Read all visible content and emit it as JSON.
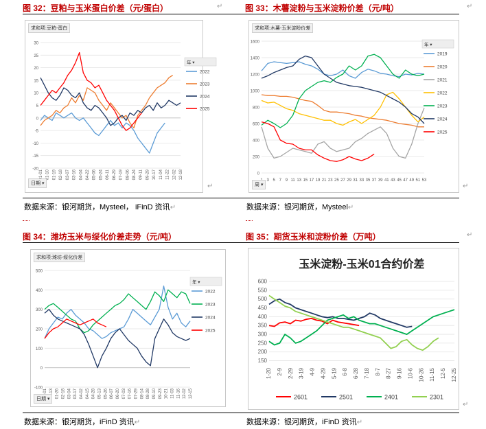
{
  "figures": [
    {
      "caption": "图 32：豆粕与玉米蛋白价差（元/蛋白）",
      "pivot_label": "求和项:豆粕-蛋白",
      "axis_button": "日期 ▾",
      "legend_title": "年",
      "source": "数据来源：银河期货，Mysteel， iFinD 资讯"
    },
    {
      "caption": "图 33：木薯淀粉与玉米淀粉价差（元/吨）",
      "pivot_label": "求和项:木薯-玉米淀粉价差",
      "axis_button": "周 ▾",
      "legend_title": "年",
      "source": "数据来源：银河期货，Mysteel"
    },
    {
      "caption": "图 34：潍坊玉米与绥化价差走势（元/吨）",
      "pivot_label": "求和项:潍坊-绥化价差",
      "axis_button": "日期 ▾",
      "legend_title": "年",
      "source": "数据来源：银河期货，iFinD 资讯"
    },
    {
      "caption": "图 35：期货玉米和淀粉价差（万吨）",
      "source": "数据来源：银河期货，iFinD 资讯"
    }
  ],
  "chart_data": [
    {
      "type": "line",
      "title": "豆粕与玉米蛋白价差（元/蛋白）",
      "ylim": [
        -20,
        30
      ],
      "yticks": [
        30,
        25,
        20,
        15,
        10,
        5,
        0,
        -5,
        -10,
        -15,
        -20
      ],
      "x_tick_labels": [
        "01-01",
        "01-10",
        "01-19",
        "02-18",
        "03-07",
        "03-16",
        "04-04",
        "04-22",
        "05-06",
        "05-24",
        "06-11",
        "06-29",
        "07-19",
        "08-06",
        "08-24",
        "09-11",
        "09-29",
        "10-17",
        "11-04",
        "11-22",
        "12-02",
        "12-18"
      ],
      "series": [
        {
          "name": "2022",
          "color": "#5b9bd5",
          "values": [
            -1,
            1,
            0,
            -1,
            2,
            1,
            0,
            1,
            2,
            0,
            -1,
            0,
            -2,
            -4,
            -6,
            -7,
            -5,
            -3,
            -1,
            -3,
            -2,
            -4,
            -2,
            -3,
            -5,
            -8,
            -10,
            -12,
            -14,
            -10,
            -6,
            -4,
            -2
          ]
        },
        {
          "name": "2023",
          "color": "#ed7d31",
          "values": [
            -3,
            -1,
            0,
            1,
            3,
            2,
            4,
            5,
            8,
            6,
            9,
            7,
            12,
            11,
            10,
            7,
            5,
            3,
            6,
            4,
            2,
            0,
            1,
            -2,
            -4,
            1,
            3,
            5,
            8,
            10,
            12,
            13,
            14,
            16,
            17
          ]
        },
        {
          "name": "2024",
          "color": "#203864",
          "values": [
            16,
            13,
            10,
            8,
            7,
            9,
            12,
            11,
            9,
            8,
            10,
            6,
            4,
            3,
            5,
            4,
            2,
            0,
            -3,
            -2,
            0,
            1,
            -1,
            2,
            1,
            3,
            2,
            4,
            5,
            3,
            6,
            4,
            5,
            7,
            6,
            5,
            6
          ]
        },
        {
          "name": "2025",
          "color": "#ff0000",
          "values": [
            5,
            7,
            9,
            11,
            10,
            12,
            14,
            17,
            19,
            22,
            26,
            18,
            15,
            14,
            12,
            13,
            10,
            7,
            5,
            3,
            0,
            -3,
            -5,
            -4,
            -2,
            0,
            2
          ]
        }
      ]
    },
    {
      "type": "line",
      "title": "木薯淀粉与玉米淀粉价差（元/吨）",
      "ylim": [
        0,
        1600
      ],
      "yticks": [
        1600,
        1400,
        1200,
        1000,
        800,
        600,
        400,
        200,
        0
      ],
      "x_tick_labels": [
        "1",
        "3",
        "5",
        "7",
        "9",
        "11",
        "13",
        "15",
        "17",
        "19",
        "21",
        "23",
        "25",
        "27",
        "29",
        "31",
        "33",
        "35",
        "37",
        "39",
        "41",
        "43",
        "45",
        "47",
        "49",
        "51",
        "53"
      ],
      "series": [
        {
          "name": "2019",
          "color": "#5b9bd5",
          "values": [
            1240,
            1330,
            1350,
            1340,
            1330,
            1340,
            1350,
            1320,
            1300,
            1260,
            1200,
            1180,
            1200,
            1250,
            1180,
            1150,
            1220,
            1260,
            1240,
            1210,
            1200,
            1180,
            1170,
            1200,
            1190,
            1210,
            1200
          ]
        },
        {
          "name": "2020",
          "color": "#ed7d31",
          "values": [
            950,
            940,
            940,
            930,
            930,
            920,
            900,
            880,
            870,
            820,
            760,
            740,
            740,
            730,
            720,
            700,
            690,
            670,
            660,
            650,
            640,
            620,
            600,
            590,
            580,
            560,
            560
          ]
        },
        {
          "name": "2021",
          "color": "#a5a5a5",
          "values": [
            560,
            300,
            180,
            200,
            250,
            300,
            280,
            260,
            240,
            350,
            380,
            300,
            260,
            280,
            300,
            380,
            420,
            480,
            520,
            560,
            480,
            300,
            200,
            180,
            350,
            600,
            790
          ]
        },
        {
          "name": "2022",
          "color": "#ffc000",
          "values": [
            880,
            850,
            860,
            820,
            780,
            760,
            720,
            700,
            680,
            660,
            640,
            640,
            600,
            580,
            620,
            650,
            600,
            650,
            700,
            800,
            950,
            980,
            900,
            800,
            700,
            620,
            680
          ]
        },
        {
          "name": "2023",
          "color": "#00b050",
          "values": [
            580,
            640,
            600,
            550,
            600,
            700,
            900,
            1000,
            1050,
            1100,
            1120,
            1100,
            1160,
            1200,
            1300,
            1250,
            1300,
            1420,
            1440,
            1400,
            1300,
            1200,
            1150,
            1250,
            1200,
            1180,
            1200
          ]
        },
        {
          "name": "2024",
          "color": "#203864",
          "values": [
            1150,
            1180,
            1220,
            1250,
            1280,
            1300,
            1380,
            1420,
            1400,
            1300,
            1200,
            1150,
            1100,
            1080,
            1060,
            1050,
            1040,
            1020,
            1000,
            980,
            940,
            900,
            860,
            800,
            720,
            680,
            600
          ]
        },
        {
          "name": "2025",
          "color": "#ff0000",
          "values": [
            620,
            600,
            560,
            400,
            360,
            350,
            300,
            280,
            280,
            220,
            180,
            150,
            140,
            160,
            200,
            170,
            150,
            180,
            230
          ]
        }
      ]
    },
    {
      "type": "line",
      "title": "潍坊玉米与绥化价差走势（元/吨）",
      "ylim": [
        -100,
        500
      ],
      "yticks": [
        500,
        400,
        300,
        200,
        100,
        0,
        -100
      ],
      "x_tick_labels": [
        "01-01",
        "01-13",
        "01-26",
        "02-18",
        "03-04",
        "03-17",
        "04-02",
        "04-15",
        "04-28",
        "05-13",
        "05-26",
        "06-07",
        "06-20",
        "07-03",
        "07-16",
        "07-29",
        "08-14",
        "08-28",
        "09-10",
        "09-23",
        "10-21",
        "11-03",
        "11-16",
        "12-02",
        "12-15"
      ],
      "series": [
        {
          "name": "2022",
          "color": "#5b9bd5",
          "values": [
            150,
            200,
            230,
            260,
            250,
            280,
            300,
            270,
            250,
            230,
            200,
            190,
            170,
            150,
            160,
            180,
            190,
            200,
            210,
            250,
            300,
            280,
            260,
            240,
            220,
            260,
            300,
            420,
            310,
            250,
            280,
            230,
            210,
            240
          ]
        },
        {
          "name": "2023",
          "color": "#00b050",
          "values": [
            300,
            320,
            330,
            310,
            290,
            270,
            250,
            240,
            200,
            180,
            190,
            220,
            240,
            260,
            280,
            300,
            320,
            330,
            350,
            380,
            360,
            340,
            320,
            300,
            340,
            390,
            370,
            340,
            400,
            380,
            360,
            390,
            380,
            330
          ]
        },
        {
          "name": "2024",
          "color": "#203864",
          "values": [
            280,
            300,
            270,
            250,
            240,
            230,
            220,
            210,
            200,
            170,
            120,
            60,
            0,
            60,
            100,
            150,
            180,
            200,
            170,
            140,
            120,
            100,
            60,
            30,
            10,
            150,
            200,
            250,
            220,
            180,
            160,
            150,
            140,
            150
          ]
        },
        {
          "name": "2025",
          "color": "#ff0000",
          "values": [
            150,
            180,
            200,
            210,
            230,
            250,
            240,
            230,
            220,
            230,
            240,
            250,
            230,
            220,
            210
          ]
        }
      ]
    },
    {
      "type": "line",
      "title": "玉米淀粉-玉米01合约价差",
      "ylim": [
        125,
        600
      ],
      "yticks": [
        600,
        550,
        500,
        450,
        400,
        350,
        300,
        250,
        200,
        150
      ],
      "x_tick_labels": [
        "1-20",
        "2-9",
        "2-29",
        "3-19",
        "4-9",
        "4-29",
        "5-19",
        "6-8",
        "6-28",
        "7-18",
        "8-7",
        "8-27",
        "9-16",
        "10-6",
        "10-26",
        "11-15",
        "12-5",
        "12-25"
      ],
      "series": [
        {
          "name": "2601",
          "color": "#ff0000",
          "values": [
            350,
            345,
            365,
            370,
            360,
            380,
            375,
            385,
            390,
            380,
            375,
            360,
            380,
            370,
            365,
            360,
            355,
            350
          ]
        },
        {
          "name": "2501",
          "color": "#203864",
          "values": [
            470,
            490,
            500,
            480,
            470,
            450,
            440,
            430,
            420,
            410,
            400,
            395,
            400,
            390,
            390,
            385,
            380,
            390,
            400,
            420,
            410,
            390,
            380,
            370,
            360,
            350,
            340,
            345
          ]
        },
        {
          "name": "2401",
          "color": "#00b050",
          "values": [
            260,
            240,
            250,
            300,
            280,
            250,
            260,
            280,
            300,
            320,
            350,
            380,
            390,
            400,
            410,
            390,
            400,
            380,
            370,
            360,
            360,
            350,
            340,
            330,
            320,
            310,
            300,
            320,
            340,
            360,
            380,
            400,
            410,
            420,
            430,
            440
          ]
        },
        {
          "name": "2301",
          "color": "#92d050",
          "values": [
            520,
            500,
            480,
            460,
            450,
            430,
            420,
            410,
            400,
            390,
            380,
            370,
            360,
            350,
            340,
            340,
            330,
            320,
            310,
            300,
            290,
            280,
            250,
            220,
            230,
            260,
            270,
            240,
            220,
            210,
            230,
            260,
            280
          ]
        }
      ]
    }
  ]
}
